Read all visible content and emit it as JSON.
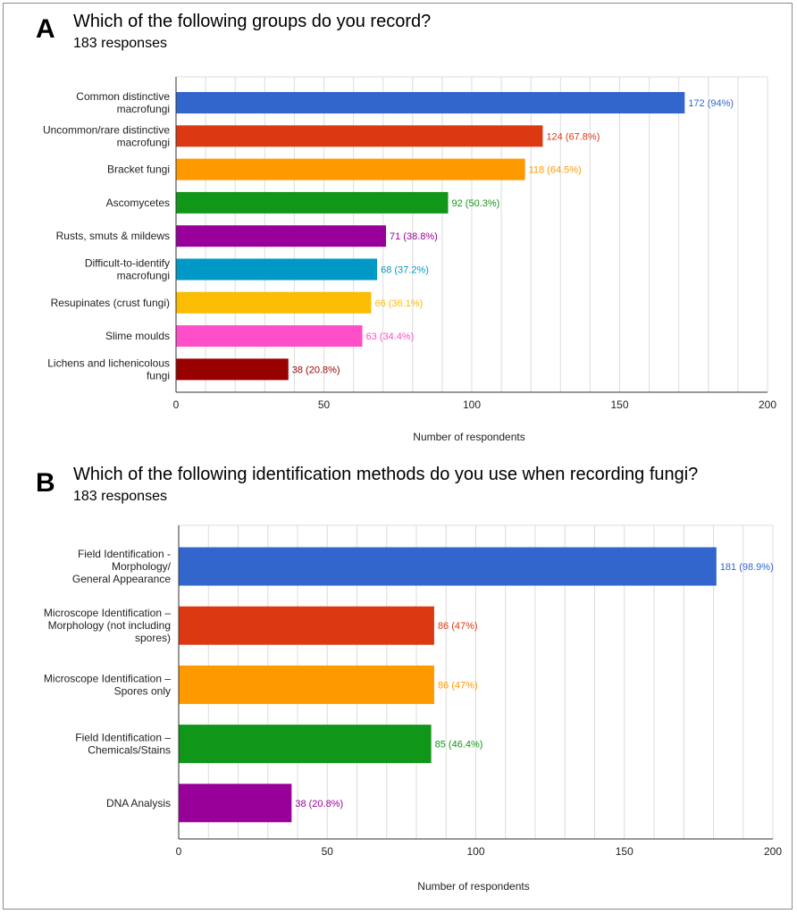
{
  "chart_data": [
    {
      "type": "bar",
      "orientation": "horizontal",
      "panel_letter": "A",
      "title": "Which of the following groups do you record?",
      "subtitle": "183 responses",
      "categories": [
        [
          "Common distinctive",
          "macrofungi"
        ],
        [
          "Uncommon/rare distinctive",
          "macrofungi"
        ],
        [
          "Bracket fungi"
        ],
        [
          "Ascomycetes"
        ],
        [
          "Rusts, smuts & mildews"
        ],
        [
          "Difficult-to-identify",
          "macrofungi"
        ],
        [
          "Resupinates (crust fungi)"
        ],
        [
          "Slime moulds"
        ],
        [
          "Lichens and lichenicolous",
          "fungi"
        ]
      ],
      "values": [
        172,
        124,
        118,
        92,
        71,
        68,
        66,
        63,
        38
      ],
      "value_labels": [
        "172 (94%)",
        "124 (67.8%)",
        "118 (64.5%)",
        "92 (50.3%)",
        "71 (38.8%)",
        "68 (37.2%)",
        "66 (36.1%)",
        "63 (34.4%)",
        "38 (20.8%)"
      ],
      "colors": [
        "#3366cc",
        "#dc3912",
        "#ff9900",
        "#109618",
        "#990099",
        "#0099c6",
        "#fbbc04",
        "#ff4fc8",
        "#990000"
      ],
      "label_colors": [
        "#3366cc",
        "#dc3912",
        "#ff9900",
        "#109618",
        "#990099",
        "#0099c6",
        "#fbbc04",
        "#ff4fc8",
        "#990000"
      ],
      "xlim": [
        0,
        200
      ],
      "xticks": [
        0,
        50,
        100,
        150,
        200
      ],
      "xlabel": "Number of respondents",
      "grid": true
    },
    {
      "type": "bar",
      "orientation": "horizontal",
      "panel_letter": "B",
      "title": "Which of the following identification methods do you use when recording fungi?",
      "subtitle": "183 responses",
      "categories": [
        [
          "Field Identification -",
          "Morphology/",
          "General Appearance"
        ],
        [
          "Microscope Identification –",
          "Morphology (not including",
          "spores)"
        ],
        [
          "Microscope Identification –",
          "Spores only"
        ],
        [
          "Field Identification –",
          "Chemicals/Stains"
        ],
        [
          "DNA Analysis"
        ]
      ],
      "values": [
        181,
        86,
        86,
        85,
        38
      ],
      "value_labels": [
        "181 (98.9%)",
        "86 (47%)",
        "86 (47%)",
        "85 (46.4%)",
        "38 (20.8%)"
      ],
      "colors": [
        "#3366cc",
        "#dc3912",
        "#ff9900",
        "#109618",
        "#990099"
      ],
      "label_colors": [
        "#3366cc",
        "#dc3912",
        "#ff9900",
        "#109618",
        "#990099"
      ],
      "xlim": [
        0,
        200
      ],
      "xticks": [
        0,
        50,
        100,
        150,
        200
      ],
      "xlabel": "Number of respondents",
      "grid": true
    }
  ]
}
